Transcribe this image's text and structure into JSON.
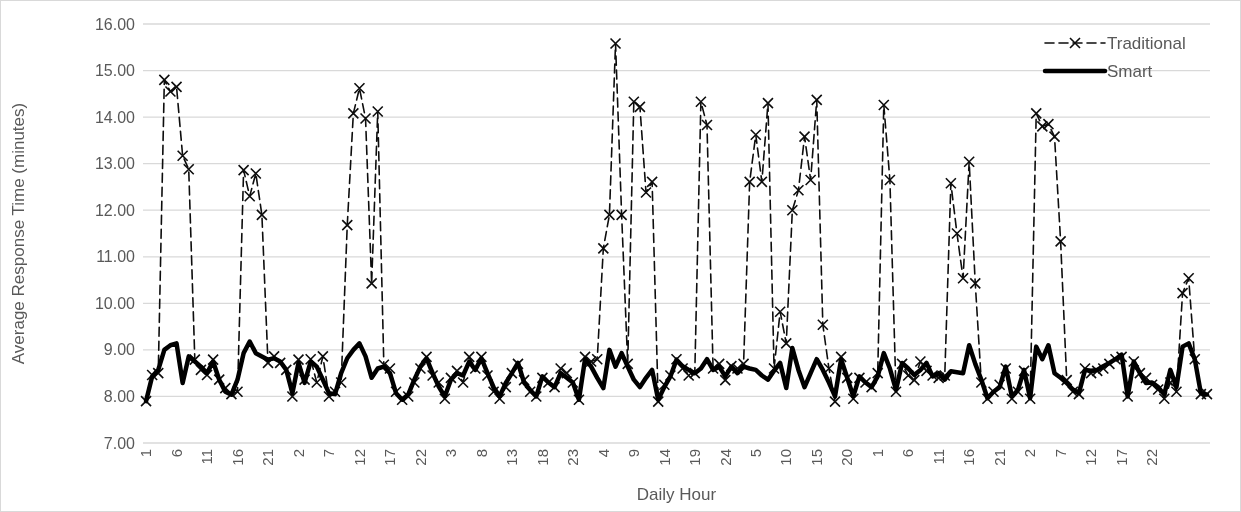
{
  "chart_data": {
    "type": "line",
    "xlabel": "Daily Hour",
    "ylabel": "Average Response Time (minutes)",
    "categories": [
      "1",
      null,
      null,
      null,
      null,
      "6",
      null,
      null,
      null,
      null,
      "11",
      null,
      null,
      null,
      null,
      "16",
      null,
      null,
      null,
      null,
      "21",
      null,
      null,
      null,
      null,
      "2",
      null,
      null,
      null,
      null,
      "7",
      null,
      null,
      null,
      null,
      "12",
      null,
      null,
      null,
      null,
      "17",
      null,
      null,
      null,
      null,
      "22",
      null,
      null,
      null,
      null,
      "3",
      null,
      null,
      null,
      null,
      "8",
      null,
      null,
      null,
      null,
      "13",
      null,
      null,
      null,
      null,
      "18",
      null,
      null,
      null,
      null,
      "23",
      null,
      null,
      null,
      null,
      "4",
      null,
      null,
      null,
      null,
      "9",
      null,
      null,
      null,
      null,
      "14",
      null,
      null,
      null,
      null,
      "19",
      null,
      null,
      null,
      null,
      "24",
      null,
      null,
      null,
      null,
      "5",
      null,
      null,
      null,
      null,
      "10",
      null,
      null,
      null,
      null,
      "15",
      null,
      null,
      null,
      null,
      "20",
      null,
      null,
      null,
      null,
      "1",
      null,
      null,
      null,
      null,
      "6",
      null,
      null,
      null,
      null,
      "11",
      null,
      null,
      null,
      null,
      "16",
      null,
      null,
      null,
      null,
      "21",
      null,
      null,
      null,
      null,
      "2",
      null,
      null,
      null,
      null,
      "7",
      null,
      null,
      null,
      null,
      "12",
      null,
      null,
      null,
      null,
      "17",
      null,
      null,
      null,
      null,
      "22",
      null,
      null,
      null,
      null,
      null,
      null,
      null,
      null,
      null
    ],
    "series": [
      {
        "name": "Traditional",
        "color": "#0d0d0d",
        "line_style": "dashed",
        "marker": "cross",
        "values": [
          7.9,
          8.46,
          8.5,
          14.8,
          14.55,
          14.65,
          13.17,
          12.88,
          8.79,
          8.57,
          8.46,
          8.79,
          8.36,
          8.18,
          8.05,
          8.1,
          12.86,
          12.3,
          12.79,
          11.9,
          8.72,
          8.86,
          8.72,
          8.57,
          8.0,
          8.79,
          8.36,
          8.8,
          8.3,
          8.86,
          8.0,
          8.1,
          8.3,
          11.68,
          14.08,
          14.62,
          13.97,
          10.43,
          14.12,
          8.68,
          8.6,
          8.1,
          7.93,
          8.0,
          8.3,
          8.6,
          8.85,
          8.45,
          8.3,
          7.95,
          8.4,
          8.55,
          8.3,
          8.85,
          8.6,
          8.85,
          8.45,
          8.1,
          7.95,
          8.2,
          8.5,
          8.7,
          8.35,
          8.1,
          8.0,
          8.4,
          8.3,
          8.2,
          8.6,
          8.5,
          8.3,
          7.93,
          8.85,
          8.75,
          8.8,
          11.18,
          11.9,
          15.58,
          11.9,
          8.7,
          14.33,
          14.22,
          12.38,
          12.61,
          7.89,
          8.25,
          8.45,
          8.8,
          8.6,
          8.45,
          8.5,
          14.33,
          13.83,
          8.6,
          8.7,
          8.35,
          8.65,
          8.6,
          8.7,
          12.61,
          13.62,
          12.61,
          14.3,
          8.6,
          9.82,
          9.14,
          12.0,
          12.43,
          13.58,
          12.65,
          14.37,
          9.54,
          8.6,
          7.89,
          8.85,
          8.4,
          7.95,
          8.4,
          8.3,
          8.2,
          8.5,
          14.26,
          12.65,
          8.1,
          8.7,
          8.45,
          8.35,
          8.75,
          8.55,
          8.45,
          8.4,
          8.45,
          12.58,
          11.5,
          10.54,
          13.04,
          10.43,
          8.3,
          7.95,
          8.1,
          8.25,
          8.6,
          7.95,
          8.1,
          8.55,
          7.95,
          14.08,
          13.8,
          13.85,
          13.58,
          11.33,
          8.35,
          8.1,
          8.05,
          8.6,
          8.5,
          8.55,
          8.6,
          8.7,
          8.8,
          8.85,
          8.0,
          8.75,
          8.5,
          8.4,
          8.25,
          8.15,
          7.95,
          8.3,
          8.1,
          10.22,
          10.54,
          8.8,
          8.05,
          8.05
        ]
      },
      {
        "name": "Smart",
        "color": "#000000",
        "line_style": "solid",
        "marker": "none",
        "values": [
          7.9,
          8.43,
          8.57,
          9.0,
          9.1,
          9.14,
          8.29,
          8.86,
          8.75,
          8.64,
          8.5,
          8.75,
          8.36,
          8.1,
          8.04,
          8.36,
          8.93,
          9.18,
          8.93,
          8.86,
          8.79,
          8.82,
          8.75,
          8.57,
          8.07,
          8.72,
          8.29,
          8.75,
          8.64,
          8.36,
          8.07,
          8.05,
          8.5,
          8.82,
          9.0,
          9.14,
          8.86,
          8.4,
          8.6,
          8.64,
          8.5,
          8.07,
          7.93,
          8.04,
          8.36,
          8.64,
          8.82,
          8.5,
          8.21,
          8.0,
          8.36,
          8.5,
          8.45,
          8.75,
          8.57,
          8.82,
          8.5,
          8.2,
          8.0,
          8.29,
          8.5,
          8.72,
          8.3,
          8.14,
          8.0,
          8.43,
          8.3,
          8.2,
          8.5,
          8.4,
          8.3,
          7.93,
          8.8,
          8.64,
          8.4,
          8.18,
          9.0,
          8.64,
          8.93,
          8.64,
          8.36,
          8.2,
          8.4,
          8.57,
          7.93,
          8.2,
          8.43,
          8.79,
          8.65,
          8.57,
          8.5,
          8.6,
          8.8,
          8.57,
          8.64,
          8.43,
          8.64,
          8.5,
          8.64,
          8.6,
          8.57,
          8.45,
          8.36,
          8.55,
          8.72,
          8.18,
          9.04,
          8.57,
          8.2,
          8.5,
          8.8,
          8.57,
          8.3,
          8.0,
          8.8,
          8.4,
          8.0,
          8.43,
          8.3,
          8.2,
          8.43,
          8.93,
          8.6,
          8.14,
          8.72,
          8.6,
          8.46,
          8.57,
          8.72,
          8.43,
          8.5,
          8.36,
          8.54,
          8.52,
          8.5,
          9.1,
          8.7,
          8.36,
          7.96,
          8.1,
          8.2,
          8.64,
          8.0,
          8.14,
          8.57,
          7.96,
          9.07,
          8.8,
          9.1,
          8.5,
          8.4,
          8.29,
          8.15,
          8.07,
          8.57,
          8.55,
          8.57,
          8.65,
          8.72,
          8.8,
          8.9,
          8.0,
          8.75,
          8.5,
          8.29,
          8.3,
          8.2,
          8.04,
          8.57,
          8.2,
          9.07,
          9.14,
          8.8,
          8.07,
          8.04
        ]
      }
    ],
    "ylim": [
      7,
      16
    ],
    "yticks": [
      {
        "value": 7,
        "label": "7.00"
      },
      {
        "value": 8,
        "label": "8.00"
      },
      {
        "value": 9,
        "label": "9.00"
      },
      {
        "value": 10,
        "label": "10.00"
      },
      {
        "value": 11,
        "label": "11.00"
      },
      {
        "value": 12,
        "label": "12.00"
      },
      {
        "value": 13,
        "label": "13.00"
      },
      {
        "value": 14,
        "label": "14.00"
      },
      {
        "value": 15,
        "label": "15.00"
      },
      {
        "value": 16,
        "label": "16.00"
      }
    ],
    "grid": "y",
    "legend": "top right"
  }
}
